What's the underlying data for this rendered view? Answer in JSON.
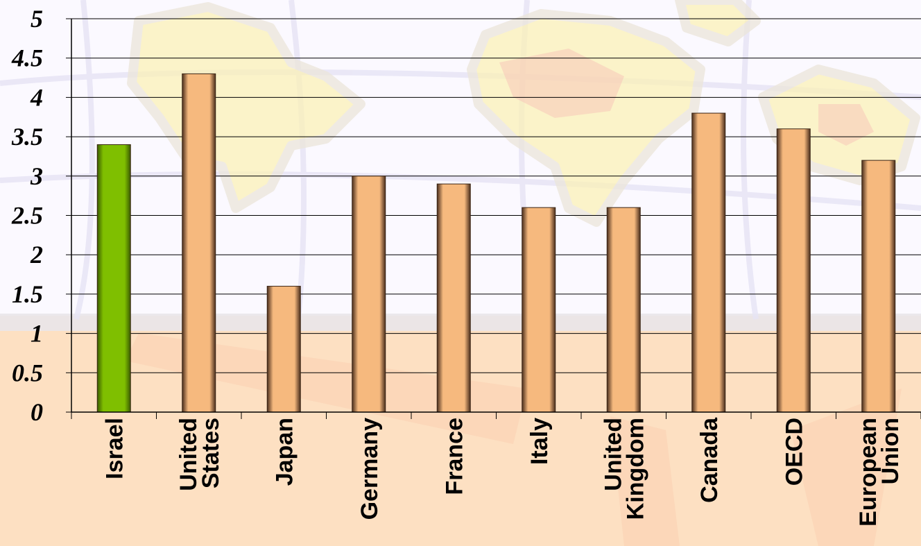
{
  "chart_data": {
    "type": "bar",
    "title": "",
    "xlabel": "",
    "ylabel": "",
    "ylim": [
      0,
      5
    ],
    "ytick_step": 0.5,
    "grid": true,
    "legend": "none",
    "categories": [
      [
        "Israel"
      ],
      [
        "United",
        "States"
      ],
      [
        "Japan"
      ],
      [
        "Germany"
      ],
      [
        "France"
      ],
      [
        "Italy"
      ],
      [
        "United",
        "Kingdom"
      ],
      [
        "Canada"
      ],
      [
        "OECD"
      ],
      [
        "European",
        "Union"
      ]
    ],
    "values": [
      3.4,
      4.3,
      1.6,
      3.0,
      2.9,
      2.6,
      2.6,
      3.8,
      3.6,
      3.2
    ],
    "highlight_index": 0,
    "colors": {
      "highlight": "#7fbf00",
      "bar": "#f6b97e",
      "gridline": "#000000"
    }
  }
}
